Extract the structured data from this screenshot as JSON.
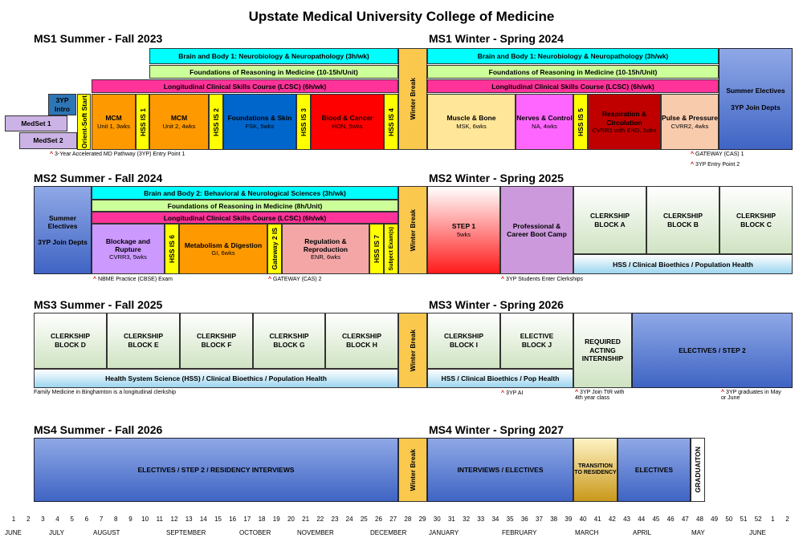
{
  "title": "Upstate Medical University College of Medicine",
  "colors": {
    "hss": "#ffff00",
    "winter_break": "#f9c84d",
    "cyan": "#00ffff",
    "green": "#ccff99",
    "magenta": "#ff3399",
    "mcm": "#ff9900",
    "fsk": "#0066cc",
    "hon": "#ff0000",
    "msk": "#ffe699",
    "na": "#ff66ff",
    "cvrr1": "#c00000",
    "cvrr2": "#f8cbad",
    "blue": "#4f72d0"
  },
  "ms1": {
    "heading_left": "MS1 Summer - Fall 2023",
    "heading_right": "MS1 Winter - Spring 2024",
    "bb1": "Brain and Body 1: Neurobiology & Neuropathology (3h/wk)",
    "for": "Foundations of Reasoning in Medicine (10-15h/Unit)",
    "lcsc": "Longitudinal Clinical Skills Course (LCSC) (6h/wk)",
    "intro": "3YP Intro",
    "orient": "Orient-Soft Start",
    "medset1": "MedSet 1",
    "medset2": "MedSet 2",
    "mcm1_title": "MCM",
    "mcm1_sub": "Unit 1, 3wks",
    "is1": "HSS IS 1",
    "mcm2_title": "MCM",
    "mcm2_sub": "Unit 2, 4wks",
    "is2": "HSS IS 2",
    "fsk_title": "Foundations & Skin",
    "fsk_sub": "FSK, 5wks",
    "is3": "HSS IS 3",
    "hon_title": "Blood & Cancer",
    "hon_sub": "HON, 5wks",
    "is4": "HSS IS 4",
    "winter_break": "Winter Break",
    "msk_title": "Muscle & Bone",
    "msk_sub": "MSK, 6wks",
    "na_title": "Nerves & Control",
    "na_sub": "NA, 4wks",
    "is5": "HSS IS 5",
    "cvrr1_title": "Respiration & Circulation",
    "cvrr1_sub": "CVRR1 with END, 5wks",
    "cvrr2_title": "Pulse & Pressure",
    "cvrr2_sub": "CVRR2, 4wks",
    "electives_title": "Summer Electives",
    "electives_sub": "3YP Join Depts",
    "note_entry": "3-Year Accelerated MD Pathway (3YP) Entry Point 1",
    "note_gateway": "GATEWAY (CAS) 1",
    "note_entry2": "3YP Entry Point 2"
  },
  "ms2": {
    "heading_left": "MS2 Summer - Fall 2024",
    "heading_right": "MS2 Winter - Spring 2025",
    "electives_title": "Summer Electives",
    "electives_sub": "3YP Join Depts",
    "bb2": "Brain and Body 2: Behavioral & Neurological Sciences (3h/wk)",
    "for": "Foundations of Reasoning in Medicine (8h/Unit)",
    "lcsc": "Longitudinal Clinical Skills Course (LCSC) (6h/wk)",
    "cvrr3_title": "Blockage and Rupture",
    "cvrr3_sub": "CVRR3, 5wks",
    "is6": "HSS IS 6",
    "gi_title": "Metabolism & Digestion",
    "gi_sub": "GI, 6wks",
    "gateway2": "Gateway 2 IS",
    "enr_title": "Regulation & Reproduction",
    "enr_sub": "ENR, 6wks",
    "is7": "HSS IS 7",
    "subject_exams": "Subject Exam(s)",
    "winter_break": "Winter Break",
    "step1_title": "STEP 1",
    "step1_sub": "5wks",
    "bootcamp": "Professional & Career Boot Camp",
    "clerk_a": "CLERKSHIP BLOCK A",
    "clerk_b": "CLERKSHIP BLOCK B",
    "clerk_c": "CLERKSHIP BLOCK C",
    "hss_bar": "HSS / Clinical Bioethics / Population Health",
    "note_nbme": "NBME Practice (CBSE) Exam",
    "note_gateway": "GATEWAY (CAS) 2",
    "note_3yp": "3YP Students Enter Clerkships"
  },
  "ms3": {
    "heading_left": "MS3 Summer - Fall 2025",
    "heading_right": "MS3 Winter - Spring 2026",
    "clerk_d": "CLERKSHIP BLOCK D",
    "clerk_e": "CLERKSHIP BLOCK E",
    "clerk_f": "CLERKSHIP BLOCK F",
    "clerk_g": "CLERKSHIP BLOCK G",
    "clerk_h": "CLERKSHIP BLOCK H",
    "winter_break": "Winter Break",
    "clerk_i": "CLERKSHIP BLOCK I",
    "elective_j": "ELECTIVE BLOCK J",
    "acting": "REQUIRED ACTING INTERNSHIP",
    "electives_step2": "ELECTIVES / STEP 2",
    "hss_bar_left": "Health System Science (HSS) / Clinical Bioethics / Population Health",
    "hss_bar_right": "HSS / Clinical Bioethics / Pop Health",
    "note_fm": "Family Medicine in Binghamton is a longitudinal clerkship",
    "note_ai": "3YP AI",
    "note_ttr": "3YP Join TtR with 4th year class",
    "note_grad": "3YP graduates in May or June"
  },
  "ms4": {
    "heading_left": "MS4 Summer - Fall 2026",
    "heading_right": "MS4 Winter - Spring 2027",
    "electives_interviews": "ELECTIVES / STEP 2 / RESIDENCY INTERVIEWS",
    "winter_break": "Winter Break",
    "interviews": "INTERVIEWS / ELECTIVES",
    "transition": "TRANSITION TO RESIDENCY",
    "electives": "ELECTIVES",
    "graduation": "GRADUAITON"
  },
  "timeline": {
    "weeks": [
      "1",
      "2",
      "3",
      "4",
      "5",
      "6",
      "7",
      "8",
      "9",
      "10",
      "11",
      "12",
      "13",
      "14",
      "15",
      "16",
      "17",
      "18",
      "19",
      "20",
      "21",
      "22",
      "23",
      "24",
      "25",
      "26",
      "27",
      "28",
      "29",
      "30",
      "31",
      "32",
      "33",
      "34",
      "35",
      "36",
      "37",
      "38",
      "39",
      "40",
      "41",
      "42",
      "43",
      "44",
      "45",
      "46",
      "47",
      "48",
      "49",
      "50",
      "51",
      "52",
      "1",
      "2"
    ],
    "months": [
      "JUNE",
      "JULY",
      "AUGUST",
      "SEPTEMBER",
      "OCTOBER",
      "NOVEMBER",
      "DECEMBER",
      "JANUARY",
      "FEBRUARY",
      "MARCH",
      "APRIL",
      "MAY",
      "JUNE"
    ]
  }
}
